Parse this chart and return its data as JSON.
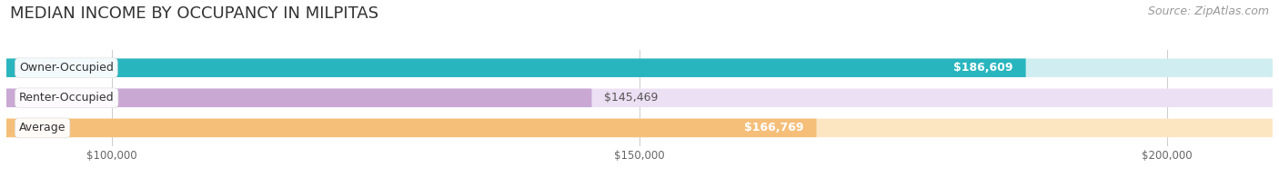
{
  "title": "MEDIAN INCOME BY OCCUPANCY IN MILPITAS",
  "source": "Source: ZipAtlas.com",
  "categories": [
    "Owner-Occupied",
    "Renter-Occupied",
    "Average"
  ],
  "values": [
    186609,
    145469,
    166769
  ],
  "labels": [
    "$186,609",
    "$145,469",
    "$166,769"
  ],
  "bar_colors": [
    "#29b5be",
    "#c9a8d4",
    "#f5bf7a"
  ],
  "bar_bg_colors": [
    "#d0eef1",
    "#ece0f4",
    "#fce6c2"
  ],
  "xmin": 90000,
  "xmax": 210000,
  "xticks": [
    100000,
    150000,
    200000
  ],
  "xticklabels": [
    "$100,000",
    "$150,000",
    "$200,000"
  ],
  "title_fontsize": 13,
  "source_fontsize": 9,
  "bar_height": 0.62,
  "background_color": "#ffffff",
  "label_color_inside": "#ffffff",
  "label_color_outside": "#555555",
  "cat_fontsize": 9,
  "val_fontsize": 9
}
